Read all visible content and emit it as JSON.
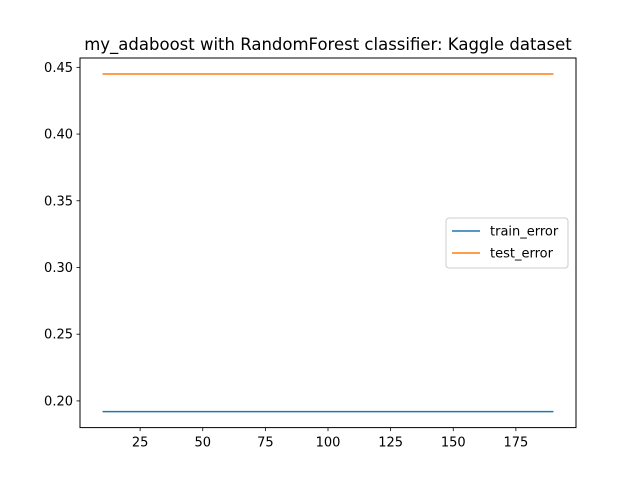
{
  "chart_data": {
    "type": "line",
    "title": "my_adaboost with RandomForest classifier: Kaggle dataset",
    "xlabel": "",
    "ylabel": "",
    "xlim": [
      1,
      199
    ],
    "ylim": [
      0.18,
      0.457
    ],
    "x_ticks": [
      25,
      50,
      75,
      100,
      125,
      150,
      175
    ],
    "y_ticks": [
      0.2,
      0.25,
      0.3,
      0.35,
      0.4,
      0.45
    ],
    "y_tick_labels": [
      "0.20",
      "0.25",
      "0.30",
      "0.35",
      "0.40",
      "0.45"
    ],
    "grid": false,
    "legend_position": "center-right",
    "x": [
      10,
      190
    ],
    "series": [
      {
        "name": "train_error",
        "color": "#1f77b4",
        "values": [
          0.192,
          0.192
        ]
      },
      {
        "name": "test_error",
        "color": "#ff7f0e",
        "values": [
          0.445,
          0.445
        ]
      }
    ]
  }
}
